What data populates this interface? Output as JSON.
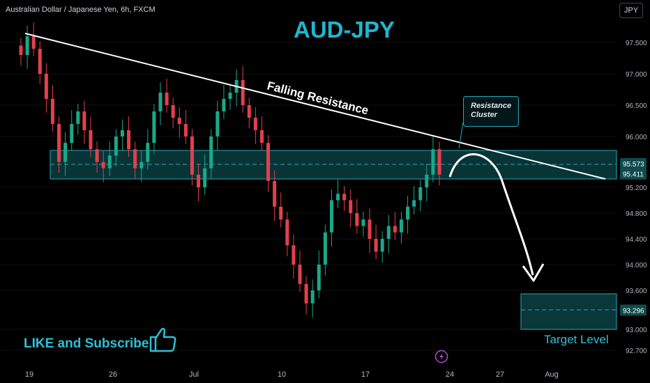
{
  "header": {
    "symbol_title": "Australian Dollar / Japanese Yen, 6h, FXCM",
    "currency_badge": "JPY"
  },
  "annotations": {
    "main_title": "AUD-JPY",
    "trendline_label": "Falling Resistance",
    "callout_line1": "Resistance",
    "callout_line2": "Cluster",
    "cta_text": "LIKE and Subscribe",
    "target_label": "Target Level"
  },
  "colors": {
    "background": "#000000",
    "up_candle": "#1aa88a",
    "down_candle": "#e2404c",
    "zone_fill": "#0a3d40",
    "zone_border": "#26a9b9",
    "accent_text": "#1fb6ce",
    "axis_text": "#b2b5be",
    "price_label_bg": "#0f4a4e"
  },
  "icons": {
    "thumbs_up": "thumbs-up-icon",
    "flash": "lightning-icon"
  },
  "chart_data": {
    "type": "candlestick",
    "timeframe": "6h",
    "y_axis": {
      "side": "right",
      "ticks": [
        "97.500",
        "97.000",
        "96.500",
        "96.000",
        "95.200",
        "94.800",
        "94.400",
        "94.000",
        "93.600",
        "93.000",
        "92.700"
      ],
      "price_labels": [
        "95.573",
        "95.411",
        "93.296"
      ],
      "range": [
        92.45,
        98.2
      ]
    },
    "x_axis": {
      "ticks": [
        "19",
        "26",
        "Jul",
        "10",
        "17",
        "24",
        "27",
        "Aug"
      ]
    },
    "trendline": {
      "label": "Falling Resistance",
      "start": [
        "Jun 19",
        97.7
      ],
      "end": [
        "Jul 29",
        95.32
      ]
    },
    "resistance_zone": {
      "top": 95.8,
      "bottom": 95.3,
      "level": 95.573
    },
    "target_zone": {
      "top": 93.55,
      "bottom": 93.0,
      "level": 93.296
    },
    "projection": "up to ~95.7 then down into target zone",
    "closes": [
      97.3,
      97.6,
      97.4,
      97.0,
      96.6,
      96.2,
      95.6,
      95.9,
      96.2,
      96.4,
      96.1,
      95.8,
      95.6,
      95.5,
      95.7,
      96.0,
      96.1,
      95.8,
      95.5,
      95.6,
      95.9,
      96.4,
      96.7,
      96.5,
      96.3,
      96.2,
      96.0,
      95.4,
      95.2,
      95.5,
      96.0,
      96.4,
      96.6,
      96.7,
      96.9,
      96.5,
      96.3,
      96.1,
      95.9,
      95.3,
      94.9,
      94.7,
      94.3,
      94.0,
      93.7,
      93.4,
      93.6,
      94.0,
      94.5,
      95.0,
      95.1,
      95.0,
      94.8,
      94.6,
      94.7,
      94.4,
      94.2,
      94.4,
      94.6,
      94.5,
      94.7,
      94.9,
      95.0,
      95.2,
      95.4,
      95.8,
      95.4
    ]
  }
}
